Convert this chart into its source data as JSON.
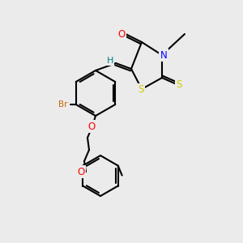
{
  "bg_color": "#ebebeb",
  "fig_width": 3.0,
  "fig_height": 3.0,
  "dpi": 100,
  "bond_color": "#000000",
  "bond_lw": 1.5,
  "atom_colors": {
    "O": "#FF0000",
    "N": "#0000FF",
    "S": "#CCCC00",
    "Br": "#CC6600",
    "H": "#008080",
    "C": "#000000"
  },
  "font_size": 7.5
}
